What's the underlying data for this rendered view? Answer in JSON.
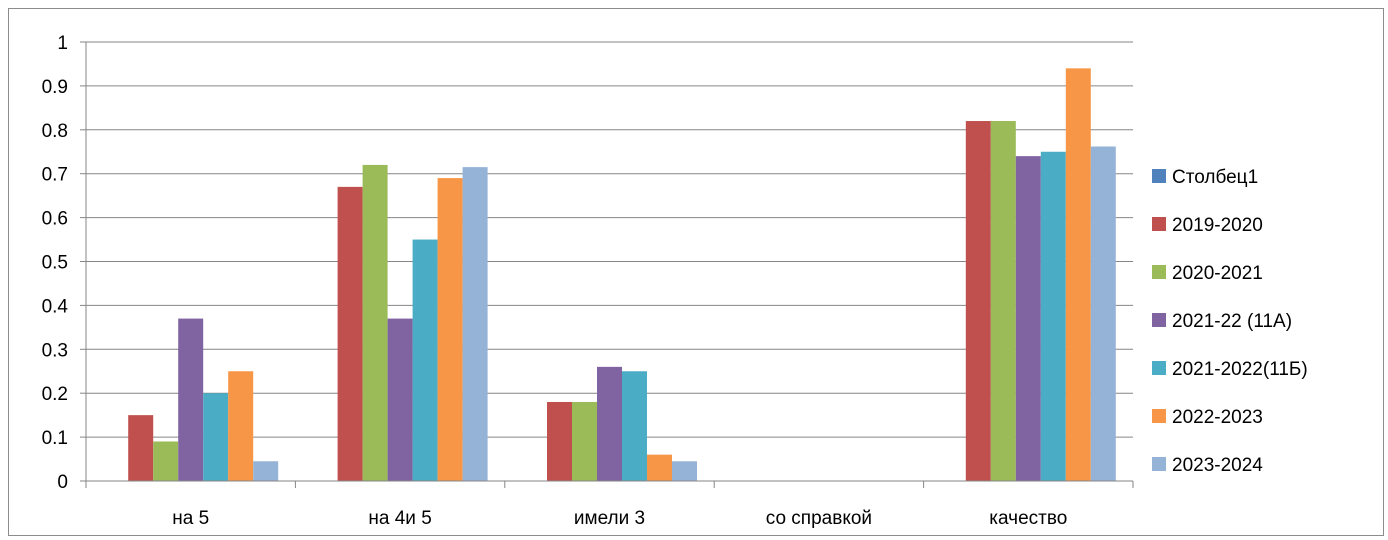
{
  "chart_data": {
    "type": "bar",
    "categories": [
      "на 5",
      "на 4и 5",
      "имели 3",
      "со справкой",
      "качество"
    ],
    "series": [
      {
        "name": "Столбец1",
        "color": "#4F81BD",
        "values": [
          null,
          null,
          null,
          null,
          null
        ]
      },
      {
        "name": "2019-2020",
        "color": "#C0504D",
        "values": [
          0.15,
          0.67,
          0.18,
          null,
          0.82
        ]
      },
      {
        "name": "2020-2021",
        "color": "#9BBB59",
        "values": [
          0.09,
          0.72,
          0.18,
          null,
          0.82
        ]
      },
      {
        "name": "2021-22 (11А)",
        "color": "#8064A2",
        "values": [
          0.37,
          0.37,
          0.26,
          null,
          0.74
        ]
      },
      {
        "name": "2021-2022(11Б)",
        "color": "#4BACC6",
        "values": [
          0.2,
          0.55,
          0.25,
          null,
          0.75
        ]
      },
      {
        "name": "2022-2023",
        "color": "#F79646",
        "values": [
          0.25,
          0.69,
          0.06,
          null,
          0.94
        ]
      },
      {
        "name": "2023-2024",
        "color": "#95B3D7",
        "values": [
          0.045,
          0.715,
          0.045,
          null,
          0.762
        ]
      }
    ],
    "yticks": [
      "0",
      "0.1",
      "0.2",
      "0.3",
      "0.4",
      "0.5",
      "0.6",
      "0.7",
      "0.8",
      "0.9",
      "1"
    ],
    "ylim": [
      0,
      1
    ],
    "grid": true,
    "legend_position": "right"
  }
}
